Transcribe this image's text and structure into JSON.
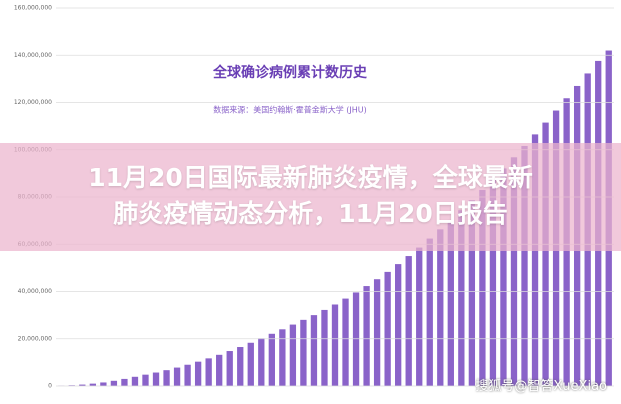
{
  "chart_data": {
    "type": "bar",
    "title": "全球确诊病例累计数历史",
    "subtitle": "数据来源：美国约翰斯·霍普金斯大学 (JHU)",
    "values": [
      100000,
      300000,
      600000,
      1000000,
      1500000,
      2200000,
      3000000,
      3900000,
      4800000,
      5700000,
      6700000,
      7800000,
      9000000,
      10300000,
      11700000,
      13200000,
      14800000,
      16500000,
      18300000,
      20200000,
      22100000,
      24000000,
      26000000,
      28000000,
      30000000,
      32200000,
      34500000,
      37000000,
      39600000,
      42300000,
      45200000,
      48300000,
      51600000,
      55000000,
      58600000,
      62400000,
      66300000,
      70300000,
      74400000,
      78600000,
      83000000,
      87500000,
      92100000,
      96800000,
      101600000,
      106500000,
      111500000,
      116600000,
      121800000,
      127000000,
      132300000,
      137600000,
      142000000
    ],
    "color": "#8a63c9",
    "ylim": [
      0,
      160000000
    ],
    "yticks": [
      0,
      {
        "value": 20000000,
        "label": "20,000,000"
      },
      {
        "value": 40000000,
        "label": "40,000,000"
      },
      {
        "value": 60000000,
        "label": "60,000,000"
      },
      {
        "value": 80000000,
        "label": "80,000,000"
      },
      {
        "value": 100000000,
        "label": "100,000,000"
      },
      {
        "value": 120000000,
        "label": "120,000,000"
      },
      {
        "value": 140000000,
        "label": "140,000,000"
      },
      {
        "value": 160000000,
        "label": "160,000,000"
      }
    ],
    "grid": true
  },
  "overlay": {
    "headline_line1": "11月20日国际最新肺炎疫情，全球最新",
    "headline_line2": "肺炎疫情动态分析，11月20日报告",
    "watermark": "搜狐号@智答XueXiao"
  }
}
